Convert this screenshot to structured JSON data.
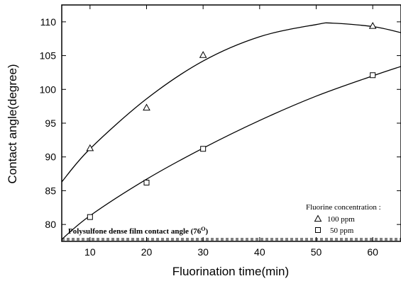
{
  "chart_data": {
    "type": "scatter",
    "title": "",
    "xlabel": "Fluorination time(min)",
    "ylabel": "Contact angle(degree)",
    "xlim": [
      5,
      65
    ],
    "ylim": [
      77.5,
      112.5
    ],
    "xticks": [
      10,
      20,
      30,
      40,
      50,
      60
    ],
    "yticks": [
      80,
      85,
      90,
      95,
      100,
      105,
      110
    ],
    "grid": false,
    "legend": {
      "position": "bottom-right",
      "title": "Fluorine concentration :",
      "entries": [
        {
          "label": "100 ppm",
          "marker": "triangle"
        },
        {
          "label": "50 ppm",
          "marker": "square"
        }
      ]
    },
    "series": [
      {
        "name": "100 ppm",
        "marker": "triangle",
        "points": [
          [
            10,
            91.3
          ],
          [
            20,
            97.3
          ],
          [
            30,
            105.1
          ],
          [
            60,
            109.4
          ]
        ],
        "fit": [
          [
            5,
            86.3
          ],
          [
            10,
            91.2
          ],
          [
            20,
            98.6
          ],
          [
            30,
            104.2
          ],
          [
            40,
            107.8
          ],
          [
            50,
            109.6
          ],
          [
            53,
            109.8
          ],
          [
            60,
            109.3
          ],
          [
            65,
            108.4
          ]
        ]
      },
      {
        "name": "50 ppm",
        "marker": "square",
        "points": [
          [
            10,
            81.1
          ],
          [
            20,
            86.2
          ],
          [
            30,
            91.2
          ],
          [
            60,
            102.1
          ]
        ],
        "fit": [
          [
            5,
            77.8
          ],
          [
            10,
            81.3
          ],
          [
            20,
            86.7
          ],
          [
            30,
            91.3
          ],
          [
            40,
            95.4
          ],
          [
            50,
            99.0
          ],
          [
            60,
            102.0
          ],
          [
            65,
            103.4
          ]
        ]
      }
    ],
    "reference_line": {
      "label": "Polysulfone dense film contact angle (76",
      "label_superscript": "O",
      "label_suffix": ")",
      "style": "dashed"
    }
  }
}
